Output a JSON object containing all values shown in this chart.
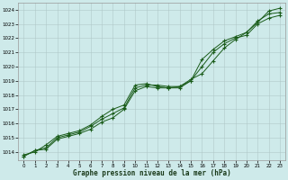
{
  "xlabel": "Graphe pression niveau de la mer (hPa)",
  "background_color": "#ceeaea",
  "grid_color": "#b0c8c8",
  "line_color": "#1a5c1a",
  "xlim": [
    -0.5,
    23.5
  ],
  "ylim": [
    1013.4,
    1024.5
  ],
  "yticks": [
    1014,
    1015,
    1016,
    1017,
    1018,
    1019,
    1020,
    1021,
    1022,
    1023,
    1024
  ],
  "xticks": [
    0,
    1,
    2,
    3,
    4,
    5,
    6,
    7,
    8,
    9,
    10,
    11,
    12,
    13,
    14,
    15,
    16,
    17,
    18,
    19,
    20,
    21,
    22,
    23
  ],
  "series1_x": [
    0,
    1,
    2,
    3,
    4,
    5,
    6,
    7,
    8,
    9,
    10,
    11,
    12,
    13,
    14,
    15,
    16,
    17,
    18,
    19,
    20,
    21,
    22,
    23
  ],
  "series1_y": [
    1013.7,
    1014.1,
    1014.3,
    1015.0,
    1015.2,
    1015.4,
    1015.8,
    1016.3,
    1016.7,
    1017.1,
    1018.5,
    1018.7,
    1018.7,
    1018.6,
    1018.6,
    1019.0,
    1020.5,
    1021.2,
    1021.8,
    1022.1,
    1022.4,
    1023.2,
    1023.7,
    1023.8
  ],
  "series2_x": [
    0,
    1,
    2,
    3,
    4,
    5,
    6,
    7,
    8,
    9,
    10,
    11,
    12,
    13,
    14,
    15,
    16,
    17,
    18,
    19,
    20,
    21,
    22,
    23
  ],
  "series2_y": [
    1013.7,
    1014.1,
    1014.2,
    1014.9,
    1015.1,
    1015.3,
    1015.6,
    1016.1,
    1016.4,
    1017.0,
    1018.3,
    1018.6,
    1018.5,
    1018.5,
    1018.5,
    1019.0,
    1020.0,
    1021.0,
    1021.6,
    1022.0,
    1022.2,
    1023.0,
    1023.4,
    1023.6
  ],
  "series3_x": [
    0,
    1,
    2,
    3,
    4,
    5,
    6,
    7,
    8,
    9,
    10,
    11,
    12,
    13,
    14,
    15,
    16,
    17,
    18,
    19,
    20,
    21,
    22,
    23
  ],
  "series3_y": [
    1013.8,
    1014.0,
    1014.5,
    1015.1,
    1015.3,
    1015.5,
    1015.9,
    1016.5,
    1017.0,
    1017.3,
    1018.7,
    1018.8,
    1018.6,
    1018.5,
    1018.6,
    1019.1,
    1019.5,
    1020.4,
    1021.3,
    1021.9,
    1022.4,
    1023.1,
    1023.9,
    1024.1
  ]
}
